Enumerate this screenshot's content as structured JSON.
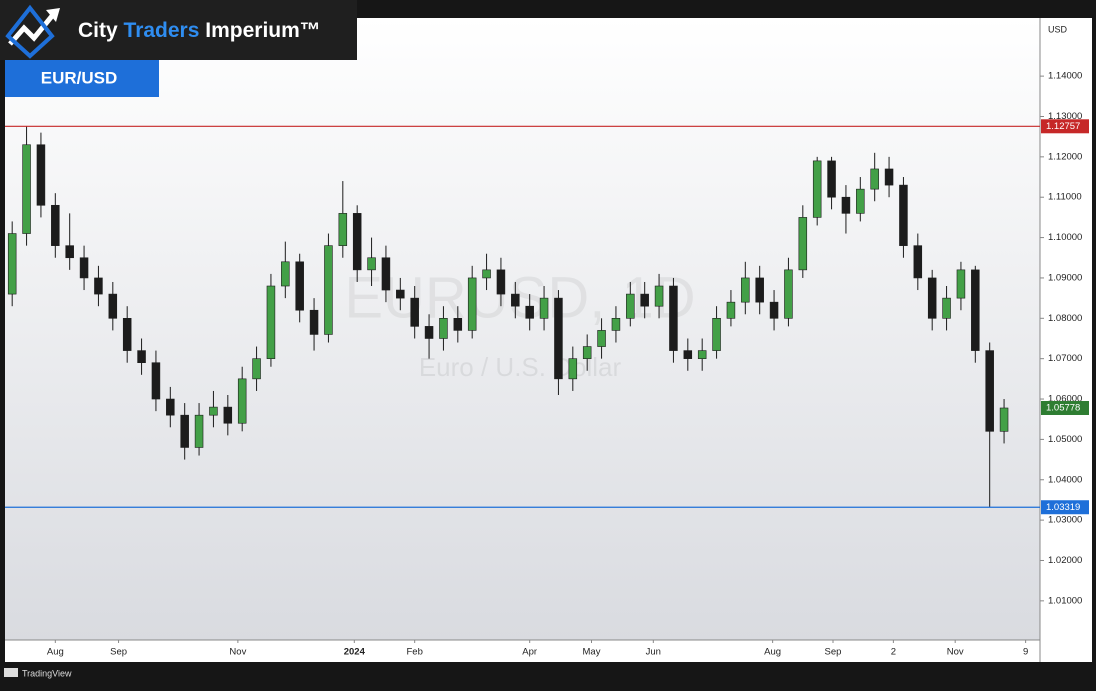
{
  "header": {
    "brand": {
      "city": "City",
      "traders": "Traders",
      "imperium": "Imperium™"
    },
    "pair": "EUR/USD"
  },
  "footer": {
    "source": "TradingView"
  },
  "chart_data": {
    "type": "candlestick",
    "watermark": "EURUSD, 1D",
    "watermark_subtitle": "Euro / U.S. Dollar",
    "currency_label": "USD",
    "up_color": "#43a047",
    "down_color": "#1c1c1c",
    "xlim": [
      0,
      72
    ],
    "xticks": [
      {
        "value": 3.5,
        "label": "Aug"
      },
      {
        "value": 7.9,
        "label": "Sep"
      },
      {
        "value": 16.2,
        "label": "Nov"
      },
      {
        "value": 24.3,
        "label": "2024"
      },
      {
        "value": 28.5,
        "label": "Feb"
      },
      {
        "value": 36.5,
        "label": "Apr"
      },
      {
        "value": 40.8,
        "label": "May"
      },
      {
        "value": 45.1,
        "label": "Jun"
      },
      {
        "value": 53.4,
        "label": "Aug"
      },
      {
        "value": 57.6,
        "label": "Sep"
      },
      {
        "value": 61.8,
        "label": "2"
      },
      {
        "value": 66.1,
        "label": "Nov"
      },
      {
        "value": 71.0,
        "label": "9"
      }
    ],
    "ylim": [
      1.0003,
      1.1544
    ],
    "yticks": [
      {
        "value": 1.01,
        "label": "1.01000"
      },
      {
        "value": 1.02,
        "label": "1.02000"
      },
      {
        "value": 1.03,
        "label": "1.03000"
      },
      {
        "value": 1.04,
        "label": "1.04000"
      },
      {
        "value": 1.05,
        "label": "1.05000"
      },
      {
        "value": 1.06,
        "label": "1.06000"
      },
      {
        "value": 1.07,
        "label": "1.07000"
      },
      {
        "value": 1.08,
        "label": "1.08000"
      },
      {
        "value": 1.09,
        "label": "1.09000"
      },
      {
        "value": 1.1,
        "label": "1.10000"
      },
      {
        "value": 1.11,
        "label": "1.11000"
      },
      {
        "value": 1.12,
        "label": "1.12000"
      },
      {
        "value": 1.13,
        "label": "1.13000"
      },
      {
        "value": 1.14,
        "label": "1.14000"
      }
    ],
    "levels": [
      {
        "value": 1.12757,
        "color": "#c62828"
      },
      {
        "value": 1.03319,
        "color": "#1e6fd9"
      }
    ],
    "last_price": {
      "value": 1.05778,
      "color": "#2e7d32"
    },
    "open": [
      1.086,
      1.101,
      1.123,
      1.108,
      1.098,
      1.095,
      1.09,
      1.086,
      1.08,
      1.072,
      1.069,
      1.06,
      1.056,
      1.048,
      1.056,
      1.058,
      1.054,
      1.065,
      1.07,
      1.088,
      1.094,
      1.082,
      1.076,
      1.098,
      1.106,
      1.092,
      1.095,
      1.087,
      1.085,
      1.078,
      1.075,
      1.08,
      1.077,
      1.09,
      1.092,
      1.086,
      1.083,
      1.08,
      1.085,
      1.065,
      1.07,
      1.073,
      1.077,
      1.08,
      1.086,
      1.083,
      1.088,
      1.072,
      1.07,
      1.072,
      1.08,
      1.084,
      1.09,
      1.084,
      1.08,
      1.092,
      1.105,
      1.119,
      1.11,
      1.106,
      1.112,
      1.117,
      1.113,
      1.098,
      1.09,
      1.08,
      1.085,
      1.092,
      1.072,
      1.052
    ],
    "high": [
      1.104,
      1.1276,
      1.126,
      1.111,
      1.106,
      1.098,
      1.093,
      1.089,
      1.083,
      1.075,
      1.072,
      1.063,
      1.059,
      1.059,
      1.062,
      1.061,
      1.068,
      1.073,
      1.091,
      1.099,
      1.096,
      1.085,
      1.101,
      1.114,
      1.108,
      1.1,
      1.098,
      1.09,
      1.088,
      1.081,
      1.083,
      1.083,
      1.093,
      1.096,
      1.095,
      1.089,
      1.086,
      1.088,
      1.087,
      1.073,
      1.076,
      1.08,
      1.083,
      1.089,
      1.089,
      1.091,
      1.09,
      1.075,
      1.075,
      1.083,
      1.087,
      1.094,
      1.093,
      1.087,
      1.095,
      1.108,
      1.12,
      1.12,
      1.113,
      1.115,
      1.121,
      1.12,
      1.115,
      1.101,
      1.092,
      1.088,
      1.094,
      1.093,
      1.074,
      1.06
    ],
    "low": [
      1.083,
      1.098,
      1.105,
      1.095,
      1.092,
      1.087,
      1.083,
      1.077,
      1.069,
      1.066,
      1.057,
      1.053,
      1.045,
      1.046,
      1.053,
      1.051,
      1.052,
      1.062,
      1.068,
      1.085,
      1.079,
      1.072,
      1.074,
      1.095,
      1.089,
      1.088,
      1.084,
      1.082,
      1.075,
      1.07,
      1.072,
      1.074,
      1.075,
      1.087,
      1.083,
      1.08,
      1.077,
      1.077,
      1.061,
      1.062,
      1.067,
      1.07,
      1.074,
      1.078,
      1.08,
      1.08,
      1.069,
      1.067,
      1.067,
      1.07,
      1.078,
      1.081,
      1.081,
      1.077,
      1.078,
      1.09,
      1.103,
      1.107,
      1.101,
      1.104,
      1.109,
      1.11,
      1.095,
      1.087,
      1.077,
      1.077,
      1.082,
      1.069,
      1.0332,
      1.049
    ],
    "close": [
      1.101,
      1.123,
      1.108,
      1.098,
      1.095,
      1.09,
      1.086,
      1.08,
      1.072,
      1.069,
      1.06,
      1.056,
      1.048,
      1.056,
      1.058,
      1.054,
      1.065,
      1.07,
      1.088,
      1.094,
      1.082,
      1.076,
      1.098,
      1.106,
      1.092,
      1.095,
      1.087,
      1.085,
      1.078,
      1.075,
      1.08,
      1.077,
      1.09,
      1.092,
      1.086,
      1.083,
      1.08,
      1.085,
      1.065,
      1.07,
      1.073,
      1.077,
      1.08,
      1.086,
      1.083,
      1.088,
      1.072,
      1.07,
      1.072,
      1.08,
      1.084,
      1.09,
      1.084,
      1.08,
      1.092,
      1.105,
      1.119,
      1.11,
      1.106,
      1.112,
      1.117,
      1.113,
      1.098,
      1.09,
      1.08,
      1.085,
      1.092,
      1.072,
      1.052,
      1.05778
    ]
  }
}
